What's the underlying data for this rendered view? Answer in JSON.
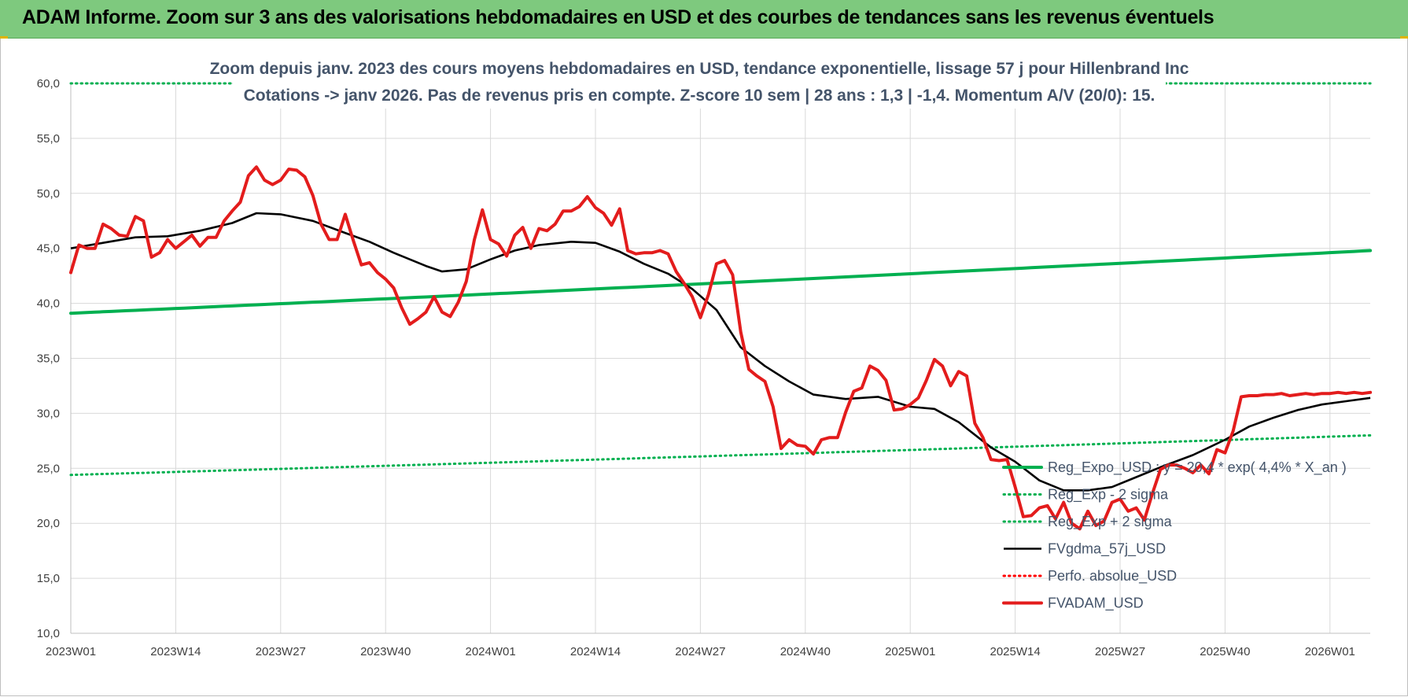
{
  "banner": {
    "title": "ADAM Informe. Zoom sur 3 ans des valorisations hebdomadaires en USD et des courbes de tendances sans les revenus éventuels"
  },
  "chart_data": {
    "type": "line",
    "title_line1": "Zoom depuis janv. 2023 des cours moyens hebdomadaires en USD, tendance exponentielle, lissage 57 j pour Hillenbrand Inc",
    "title_line2": "Cotations -> janv 2026. Pas de revenus pris en compte. Z-score 10 sem | 28 ans : 1,3 | -1,4. Momentum A/V (20/0): 15.",
    "x_tick_labels": [
      "2023W01",
      "2023W14",
      "2023W27",
      "2023W40",
      "2024W01",
      "2024W14",
      "2024W27",
      "2024W40",
      "2025W01",
      "2025W14",
      "2025W27",
      "2025W40",
      "2026W01"
    ],
    "x_tick_weeks": [
      0,
      13,
      26,
      39,
      52,
      65,
      78,
      91,
      104,
      117,
      130,
      143,
      156
    ],
    "y_tick_labels": [
      "10,0",
      "15,0",
      "20,0",
      "25,0",
      "30,0",
      "35,0",
      "40,0",
      "45,0",
      "50,0",
      "55,0",
      "60,0"
    ],
    "ylim": [
      10,
      60
    ],
    "grid": true,
    "legend_position": "bottom-right",
    "series": [
      {
        "name": "Reg_Expo_USD : y = 20,4 * exp( 4,4% * X_an )",
        "color": "#00b050",
        "style": "solid-thick",
        "start_week": 0,
        "end_week": 161,
        "start_value": 39.1,
        "end_value": 44.8
      },
      {
        "name": "Reg_Exp - 2 sigma",
        "color": "#00b050",
        "style": "dotted",
        "start_week": 0,
        "end_week": 161,
        "start_value": 24.4,
        "end_value": 28.0
      },
      {
        "name": "Reg_Exp + 2 sigma",
        "color": "#00b050",
        "style": "dotted",
        "start_week": 0,
        "end_week": 161,
        "start_value": 60.0,
        "end_value": 60.0
      },
      {
        "name": "FVgdma_57j_USD",
        "color": "#000000",
        "style": "solid",
        "points": [
          [
            0,
            45.0
          ],
          [
            4,
            45.5
          ],
          [
            8,
            46.0
          ],
          [
            12,
            46.1
          ],
          [
            16,
            46.6
          ],
          [
            20,
            47.3
          ],
          [
            23,
            48.2
          ],
          [
            26,
            48.1
          ],
          [
            30,
            47.5
          ],
          [
            34,
            46.4
          ],
          [
            37,
            45.6
          ],
          [
            40,
            44.6
          ],
          [
            44,
            43.4
          ],
          [
            46,
            42.9
          ],
          [
            49,
            43.1
          ],
          [
            52,
            44.0
          ],
          [
            55,
            44.8
          ],
          [
            58,
            45.3
          ],
          [
            62,
            45.6
          ],
          [
            65,
            45.5
          ],
          [
            68,
            44.7
          ],
          [
            71,
            43.6
          ],
          [
            74,
            42.7
          ],
          [
            77,
            41.3
          ],
          [
            80,
            39.4
          ],
          [
            83,
            36.0
          ],
          [
            86,
            34.3
          ],
          [
            89,
            32.9
          ],
          [
            92,
            31.7
          ],
          [
            96,
            31.3
          ],
          [
            100,
            31.5
          ],
          [
            104,
            30.6
          ],
          [
            107,
            30.4
          ],
          [
            110,
            29.2
          ],
          [
            114,
            26.9
          ],
          [
            117,
            25.6
          ],
          [
            120,
            23.9
          ],
          [
            123,
            23.0
          ],
          [
            126,
            23.0
          ],
          [
            129,
            23.3
          ],
          [
            132,
            24.2
          ],
          [
            135,
            25.1
          ],
          [
            139,
            26.2
          ],
          [
            143,
            27.6
          ],
          [
            146,
            28.8
          ],
          [
            149,
            29.6
          ],
          [
            152,
            30.3
          ],
          [
            155,
            30.8
          ],
          [
            158,
            31.1
          ],
          [
            161,
            31.4
          ]
        ]
      },
      {
        "name": "Perfo. absolue_USD",
        "color": "#ff0000",
        "style": "dotted",
        "points": []
      },
      {
        "name": "FVADAM_USD",
        "color": "#e31c1c",
        "style": "solid-thick",
        "points": [
          [
            0,
            42.8
          ],
          [
            1,
            45.3
          ],
          [
            2,
            45.0
          ],
          [
            3,
            45.0
          ],
          [
            4,
            47.2
          ],
          [
            5,
            46.8
          ],
          [
            6,
            46.2
          ],
          [
            7,
            46.1
          ],
          [
            8,
            47.9
          ],
          [
            9,
            47.5
          ],
          [
            10,
            44.2
          ],
          [
            11,
            44.6
          ],
          [
            12,
            45.8
          ],
          [
            13,
            45.0
          ],
          [
            14,
            45.6
          ],
          [
            15,
            46.2
          ],
          [
            16,
            45.2
          ],
          [
            17,
            46.0
          ],
          [
            18,
            46.0
          ],
          [
            19,
            47.5
          ],
          [
            20,
            48.4
          ],
          [
            21,
            49.2
          ],
          [
            22,
            51.6
          ],
          [
            23,
            52.4
          ],
          [
            24,
            51.2
          ],
          [
            25,
            50.8
          ],
          [
            26,
            51.2
          ],
          [
            27,
            52.2
          ],
          [
            28,
            52.1
          ],
          [
            29,
            51.5
          ],
          [
            30,
            49.8
          ],
          [
            31,
            47.2
          ],
          [
            32,
            45.8
          ],
          [
            33,
            45.8
          ],
          [
            34,
            48.1
          ],
          [
            35,
            45.7
          ],
          [
            36,
            43.5
          ],
          [
            37,
            43.7
          ],
          [
            38,
            42.8
          ],
          [
            39,
            42.2
          ],
          [
            40,
            41.4
          ],
          [
            41,
            39.6
          ],
          [
            42,
            38.1
          ],
          [
            43,
            38.6
          ],
          [
            44,
            39.2
          ],
          [
            45,
            40.6
          ],
          [
            46,
            39.2
          ],
          [
            47,
            38.8
          ],
          [
            48,
            40.1
          ],
          [
            49,
            42.0
          ],
          [
            50,
            45.8
          ],
          [
            51,
            48.5
          ],
          [
            52,
            45.8
          ],
          [
            53,
            45.4
          ],
          [
            54,
            44.3
          ],
          [
            55,
            46.2
          ],
          [
            56,
            46.9
          ],
          [
            57,
            45.0
          ],
          [
            58,
            46.8
          ],
          [
            59,
            46.6
          ],
          [
            60,
            47.2
          ],
          [
            61,
            48.4
          ],
          [
            62,
            48.4
          ],
          [
            63,
            48.8
          ],
          [
            64,
            49.7
          ],
          [
            65,
            48.7
          ],
          [
            66,
            48.2
          ],
          [
            67,
            47.1
          ],
          [
            68,
            48.6
          ],
          [
            69,
            44.8
          ],
          [
            70,
            44.5
          ],
          [
            71,
            44.6
          ],
          [
            72,
            44.6
          ],
          [
            73,
            44.8
          ],
          [
            74,
            44.5
          ],
          [
            75,
            42.9
          ],
          [
            76,
            41.8
          ],
          [
            77,
            40.6
          ],
          [
            78,
            38.7
          ],
          [
            79,
            40.8
          ],
          [
            80,
            43.6
          ],
          [
            81,
            43.9
          ],
          [
            82,
            42.6
          ],
          [
            83,
            37.4
          ],
          [
            84,
            34.0
          ],
          [
            85,
            33.4
          ],
          [
            86,
            32.9
          ],
          [
            87,
            30.6
          ],
          [
            88,
            26.8
          ],
          [
            89,
            27.6
          ],
          [
            90,
            27.1
          ],
          [
            91,
            27.0
          ],
          [
            92,
            26.3
          ],
          [
            93,
            27.6
          ],
          [
            94,
            27.8
          ],
          [
            95,
            27.8
          ],
          [
            96,
            30.1
          ],
          [
            97,
            32.0
          ],
          [
            98,
            32.3
          ],
          [
            99,
            34.3
          ],
          [
            100,
            33.9
          ],
          [
            101,
            33.0
          ],
          [
            102,
            30.3
          ],
          [
            103,
            30.4
          ],
          [
            104,
            30.8
          ],
          [
            105,
            31.4
          ],
          [
            106,
            33.0
          ],
          [
            107,
            34.9
          ],
          [
            108,
            34.3
          ],
          [
            109,
            32.5
          ],
          [
            110,
            33.8
          ],
          [
            111,
            33.4
          ],
          [
            112,
            29.1
          ],
          [
            113,
            27.8
          ],
          [
            114,
            25.8
          ],
          [
            115,
            25.7
          ],
          [
            116,
            25.8
          ],
          [
            117,
            23.3
          ],
          [
            118,
            20.6
          ],
          [
            119,
            20.7
          ],
          [
            120,
            21.4
          ],
          [
            121,
            21.6
          ],
          [
            122,
            20.4
          ],
          [
            123,
            21.9
          ],
          [
            124,
            20.0
          ],
          [
            125,
            19.5
          ],
          [
            126,
            21.1
          ],
          [
            127,
            19.8
          ],
          [
            128,
            20.2
          ],
          [
            129,
            21.9
          ],
          [
            130,
            22.2
          ],
          [
            131,
            21.1
          ],
          [
            132,
            21.4
          ],
          [
            133,
            20.3
          ],
          [
            134,
            22.7
          ],
          [
            135,
            24.9
          ],
          [
            136,
            25.3
          ],
          [
            137,
            25.3
          ],
          [
            138,
            25.0
          ],
          [
            139,
            24.6
          ],
          [
            140,
            25.3
          ],
          [
            141,
            24.5
          ],
          [
            142,
            26.7
          ],
          [
            143,
            26.4
          ],
          [
            144,
            28.4
          ],
          [
            145,
            31.5
          ],
          [
            146,
            31.6
          ],
          [
            147,
            31.6
          ],
          [
            148,
            31.7
          ],
          [
            149,
            31.7
          ],
          [
            150,
            31.8
          ],
          [
            151,
            31.6
          ],
          [
            152,
            31.7
          ],
          [
            153,
            31.8
          ],
          [
            154,
            31.7
          ],
          [
            155,
            31.8
          ],
          [
            156,
            31.8
          ],
          [
            157,
            31.9
          ],
          [
            158,
            31.8
          ],
          [
            159,
            31.9
          ],
          [
            160,
            31.8
          ],
          [
            161,
            31.9
          ]
        ]
      }
    ]
  }
}
